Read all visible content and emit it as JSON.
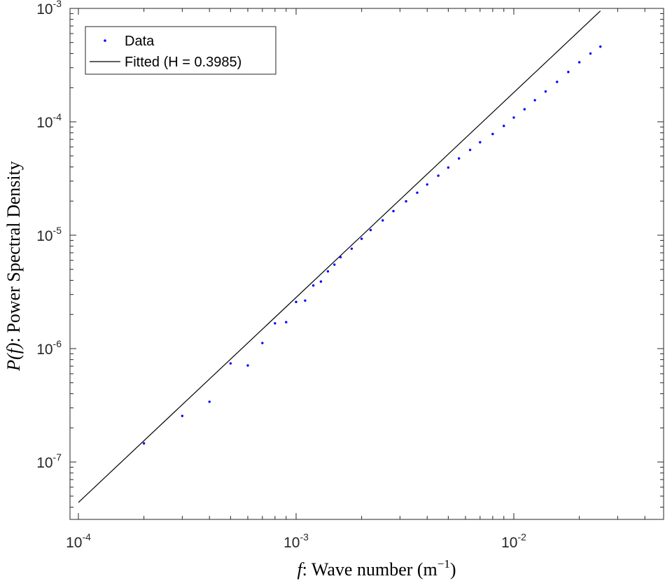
{
  "chart_data": {
    "type": "scatter",
    "x_scale": "log",
    "y_scale": "log",
    "xlim": [
      0.0001,
      0.05
    ],
    "ylim": [
      2e-08,
      0.001
    ],
    "grid": false,
    "legend_position": "top-left",
    "xlabel": {
      "var": "f",
      "sep": ":",
      "text": " Wave number (m",
      "sup": "−1",
      "close": ")"
    },
    "ylabel": {
      "var": "P(f)",
      "sep": ":",
      "text": " Power Spectral Density"
    },
    "x_ticks": [
      {
        "value": 0.0001,
        "base": "10",
        "exp": "-4"
      },
      {
        "value": 0.001,
        "base": "10",
        "exp": "-3"
      },
      {
        "value": 0.01,
        "base": "10",
        "exp": "-2"
      }
    ],
    "y_ticks": [
      {
        "value": 1e-07,
        "base": "10",
        "exp": "-7"
      },
      {
        "value": 1e-06,
        "base": "10",
        "exp": "-6"
      },
      {
        "value": 1e-05,
        "base": "10",
        "exp": "-5"
      },
      {
        "value": 0.0001,
        "base": "10",
        "exp": "-4"
      },
      {
        "value": 0.001,
        "base": "10",
        "exp": "-3"
      }
    ],
    "series": [
      {
        "name": "Data",
        "kind": "points",
        "color": "#0000ff",
        "points": [
          [
            0.0002,
            1.46e-07
          ],
          [
            0.0003,
            2.55e-07
          ],
          [
            0.0004,
            3.4e-07
          ],
          [
            0.0005,
            7.4e-07
          ],
          [
            0.0006,
            7.1e-07
          ],
          [
            0.0007,
            1.12e-06
          ],
          [
            0.0008,
            1.67e-06
          ],
          [
            0.0009,
            1.71e-06
          ],
          [
            0.001,
            2.58e-06
          ],
          [
            0.0011,
            2.65e-06
          ],
          [
            0.0012,
            3.6e-06
          ],
          [
            0.0013,
            3.9e-06
          ],
          [
            0.0014,
            4.8e-06
          ],
          [
            0.0015,
            5.5e-06
          ],
          [
            0.0016,
            6.4e-06
          ],
          [
            0.0018,
            7.6e-06
          ],
          [
            0.002,
            9.3e-06
          ],
          [
            0.0022,
            1.11e-05
          ],
          [
            0.0025,
            1.35e-05
          ],
          [
            0.0028,
            1.63e-05
          ],
          [
            0.0032,
            1.99e-05
          ],
          [
            0.0036,
            2.37e-05
          ],
          [
            0.004,
            2.8e-05
          ],
          [
            0.0045,
            3.35e-05
          ],
          [
            0.005,
            3.95e-05
          ],
          [
            0.0056,
            4.75e-05
          ],
          [
            0.0063,
            5.65e-05
          ],
          [
            0.007,
            6.6e-05
          ],
          [
            0.008,
            7.8e-05
          ],
          [
            0.009,
            9.2e-05
          ],
          [
            0.01,
            0.000109
          ],
          [
            0.0112,
            0.000129
          ],
          [
            0.0125,
            0.000155
          ],
          [
            0.014,
            0.000185
          ],
          [
            0.0158,
            0.000225
          ],
          [
            0.0178,
            0.000275
          ],
          [
            0.02,
            0.000335
          ],
          [
            0.0225,
            0.0004
          ],
          [
            0.025,
            0.00046
          ]
        ]
      },
      {
        "name": "Fitted (H = 0.3985)",
        "kind": "line",
        "color": "#000000",
        "points": [
          [
            0.0001,
            4.4e-08
          ],
          [
            0.025,
            0.00095
          ]
        ]
      }
    ]
  }
}
